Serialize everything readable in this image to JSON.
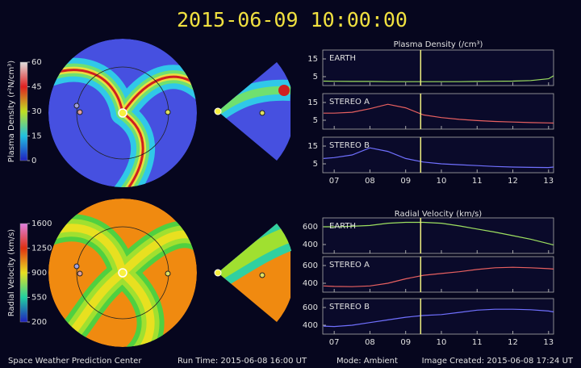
{
  "title": "2015-06-09  10:00:00",
  "footer": {
    "left": "Space Weather Prediction Center",
    "run_time": "Run Time: 2015-06-08 16:00 UT",
    "mode": "Mode: Ambient",
    "created": "Image Created: 2015-06-08 17:24 UT"
  },
  "colorbars": [
    {
      "label": "Plasma Density (r²N/cm³)",
      "lim": [
        0,
        60
      ],
      "ticks": [
        0,
        15,
        30,
        45,
        60
      ]
    },
    {
      "label": "Radial Velocity (km/s)",
      "lim": [
        200,
        1600
      ],
      "ticks": [
        200,
        550,
        900,
        1250,
        1600
      ]
    }
  ],
  "chart_data": [
    {
      "type": "line",
      "title": "Plasma Density (/cm³)",
      "x": [
        6.7,
        7,
        7.5,
        8,
        8.5,
        9,
        9.5,
        10,
        10.5,
        11,
        11.5,
        12,
        12.5,
        13,
        13.14
      ],
      "xlim": [
        6.68,
        13.14
      ],
      "xticks": [
        {
          "value": 7,
          "label": "07"
        },
        {
          "value": 8,
          "label": "08"
        },
        {
          "value": 9,
          "label": "09"
        },
        10,
        11,
        12,
        13
      ],
      "cursor_x": 9.42,
      "panels": [
        {
          "name": "EARTH",
          "color": "#9ee060",
          "ylim": [
            0,
            20
          ],
          "yticks": [
            5,
            15
          ],
          "values": [
            2.5,
            2.4,
            2.3,
            2.3,
            2.2,
            2.2,
            2.2,
            2.2,
            2.2,
            2.3,
            2.4,
            2.5,
            2.8,
            3.8,
            5.5
          ]
        },
        {
          "name": "STEREO A",
          "color": "#e86060",
          "ylim": [
            0,
            20
          ],
          "yticks": [
            5,
            15
          ],
          "values": [
            9,
            9,
            9.5,
            11.5,
            14,
            12,
            8,
            6.5,
            5.5,
            4.8,
            4.3,
            4,
            3.7,
            3.5,
            3.4
          ]
        },
        {
          "name": "STEREO B",
          "color": "#7070ff",
          "ylim": [
            0,
            20
          ],
          "yticks": [
            5,
            15
          ],
          "values": [
            8,
            8.5,
            10,
            14,
            12,
            8,
            6,
            5,
            4.5,
            4,
            3.5,
            3.2,
            3,
            2.9,
            3.2
          ]
        }
      ]
    },
    {
      "type": "line",
      "title": "Radial Velocity (km/s)",
      "x": [
        6.7,
        7,
        7.5,
        8,
        8.5,
        9,
        9.5,
        10,
        10.5,
        11,
        11.5,
        12,
        12.5,
        13,
        13.14
      ],
      "xlim": [
        6.68,
        13.14
      ],
      "xticks": [
        {
          "value": 7,
          "label": "07"
        },
        {
          "value": 8,
          "label": "08"
        },
        {
          "value": 9,
          "label": "09"
        },
        10,
        11,
        12,
        13
      ],
      "cursor_x": 9.42,
      "panels": [
        {
          "name": "EARTH",
          "color": "#9ee060",
          "ylim": [
            300,
            700
          ],
          "yticks": [
            400,
            600
          ],
          "values": [
            600,
            600,
            605,
            615,
            640,
            650,
            650,
            640,
            610,
            575,
            540,
            500,
            460,
            410,
            395
          ]
        },
        {
          "name": "STEREO A",
          "color": "#e86060",
          "ylim": [
            300,
            700
          ],
          "yticks": [
            400,
            600
          ],
          "values": [
            370,
            365,
            362,
            370,
            400,
            450,
            490,
            510,
            530,
            555,
            575,
            580,
            575,
            565,
            560
          ]
        },
        {
          "name": "STEREO B",
          "color": "#7070ff",
          "ylim": [
            300,
            700
          ],
          "yticks": [
            400,
            600
          ],
          "values": [
            390,
            385,
            400,
            430,
            460,
            490,
            510,
            520,
            545,
            570,
            580,
            580,
            575,
            560,
            550
          ]
        }
      ]
    }
  ]
}
